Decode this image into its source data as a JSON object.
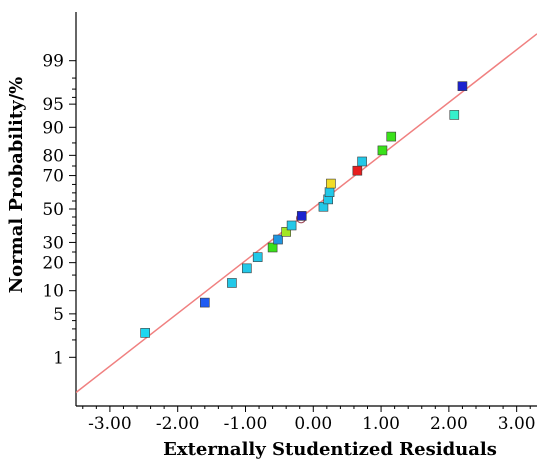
{
  "chart_data": {
    "type": "scatter",
    "title": "",
    "xlabel": "Externally Studentized Residuals",
    "ylabel": "Normal Probability/%",
    "xlim": [
      -3.5,
      3.3
    ],
    "ylim": [
      0.1,
      99.9
    ],
    "y_scale": "normal-probability",
    "x_ticks": [
      -3.0,
      -2.0,
      -1.0,
      0.0,
      1.0,
      2.0,
      3.0
    ],
    "x_tick_labels": [
      "-3.00",
      "-2.00",
      "-1.00",
      "0.00",
      "1.00",
      "2.00",
      "3.00"
    ],
    "y_ticks": [
      1,
      5,
      10,
      20,
      30,
      50,
      70,
      80,
      90,
      95,
      99
    ],
    "y_tick_labels": [
      "1",
      "5",
      "10",
      "20",
      "30",
      "50",
      "70",
      "80",
      "90",
      "95",
      "99"
    ],
    "reference_line": {
      "color": "#f08080",
      "points": [
        [
          -3.5,
          0.2
        ],
        [
          3.3,
          99.7
        ]
      ]
    },
    "points": [
      {
        "x": -2.48,
        "y": 2.6,
        "color": "#1ed7ef"
      },
      {
        "x": -1.6,
        "y": 7.1,
        "color": "#1e5bf2"
      },
      {
        "x": -1.2,
        "y": 12.3,
        "color": "#22c8e8"
      },
      {
        "x": -0.98,
        "y": 17.6,
        "color": "#22c8e8"
      },
      {
        "x": -0.82,
        "y": 22.5,
        "color": "#22c8e8"
      },
      {
        "x": -0.6,
        "y": 27.3,
        "color": "#3ae11a"
      },
      {
        "x": -0.52,
        "y": 31.6,
        "color": "#1f95e0"
      },
      {
        "x": -0.4,
        "y": 36.0,
        "color": "#a2e622"
      },
      {
        "x": -0.32,
        "y": 39.8,
        "color": "#22c8e8"
      },
      {
        "x": -0.18,
        "y": 44.2,
        "color": "#a05060",
        "marker": "circle"
      },
      {
        "x": -0.17,
        "y": 45.7,
        "color": "#1c22cf"
      },
      {
        "x": 0.15,
        "y": 51.4,
        "color": "#22c8e8"
      },
      {
        "x": 0.22,
        "y": 56.0,
        "color": "#22c8e8"
      },
      {
        "x": 0.24,
        "y": 60.4,
        "color": "#22c8e8"
      },
      {
        "x": 0.26,
        "y": 65.5,
        "color": "#f2dc28"
      },
      {
        "x": 0.65,
        "y": 72.6,
        "color": "#e81e1e"
      },
      {
        "x": 0.72,
        "y": 77.2,
        "color": "#22c8e8"
      },
      {
        "x": 1.02,
        "y": 82.1,
        "color": "#3ae11a"
      },
      {
        "x": 1.15,
        "y": 87.2,
        "color": "#3ae11a"
      },
      {
        "x": 2.08,
        "y": 93.0,
        "color": "#36f0cc"
      },
      {
        "x": 2.2,
        "y": 97.3,
        "color": "#1c22cf"
      }
    ],
    "grid": false,
    "legend": "none"
  }
}
